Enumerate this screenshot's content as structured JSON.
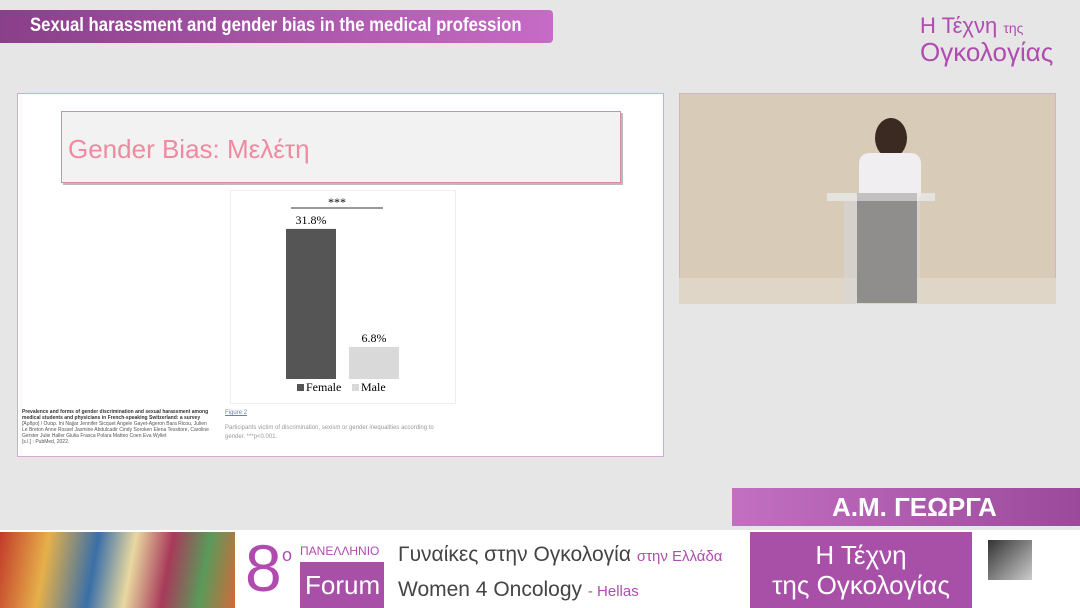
{
  "header": {
    "title": "Sexual harassment and gender bias in the medical profession"
  },
  "logo": {
    "line1": "Η Τέχνη",
    "line1b": "της",
    "line2": "Ογκολογίας"
  },
  "slide": {
    "title": "Gender Bias: Μελέτη",
    "chart": {
      "type": "bar",
      "significance": "***",
      "categories": [
        "Female",
        "Male"
      ],
      "values": [
        31.8,
        6.8
      ],
      "value_labels": [
        "31.8%",
        "6.8%"
      ],
      "colors": [
        "#555555",
        "#d9d9d9"
      ]
    },
    "citation": {
      "title": "Prevalence and forms of gender discrimination and sexual harassment among medical students and physicians in French-speaking Switzerland: a survey",
      "authors": "[Άρθρο] / Ουαρ. Ini Najjar Jennifer Sicquet Angele Gayet-Ageron Bara Ricou, Julien Le Breton Anne Rossel Jasmine Abdulcadir Cindy Soroken Elena Tessitore, Caroline Gerster Julie Haller Giulia Frasca Polara Matteo Coen Eva Wyllet",
      "source": "[s.l.] : PubMed, 2022."
    },
    "figure": {
      "label": "Figure 2",
      "caption": "Participants victim of discrimination, sexism or gender inequalities according to gender. ***p<0.001."
    }
  },
  "speaker": {
    "name": "Α.Μ. ΓΕΩΡΓΑ"
  },
  "footer": {
    "number": "8",
    "superscript": "ο",
    "panhellenic": "ΠΑΝΕΛΛΗΝΙΟ",
    "forum": "Forum",
    "greek_line": "Γυναίκες στην Ογκολογία",
    "greek_suffix": "στην Ελλάδα",
    "english_line": "Women 4 Oncology",
    "english_suffix": "- Hellas",
    "logo_line1": "Η Τέχνη",
    "logo_line2": "της Ογκολογίας"
  }
}
